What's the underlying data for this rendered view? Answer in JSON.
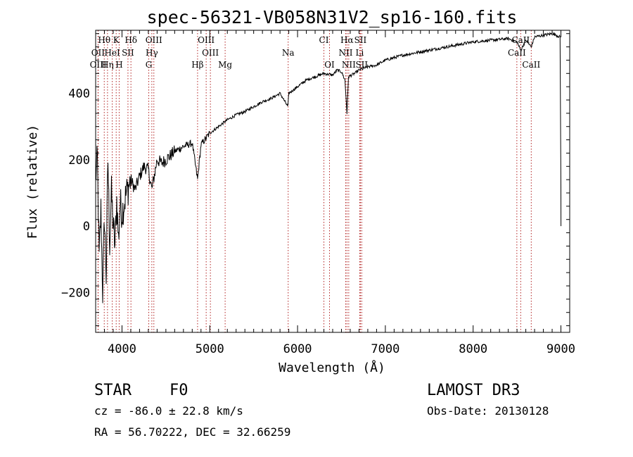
{
  "chart_data": {
    "type": "line",
    "title": "spec-56321-VB058N31V2_sp16-160.fits",
    "xlabel": "Wavelength (Å)",
    "ylabel": "Flux (relative)",
    "xlim": [
      3700,
      9100
    ],
    "ylim": [
      -320,
      590
    ],
    "xticks": [
      4000,
      5000,
      6000,
      7000,
      8000,
      9000
    ],
    "yticks": [
      -200,
      0,
      200,
      400
    ],
    "spectrum": {
      "x": [
        3700,
        3720,
        3740,
        3760,
        3780,
        3800,
        3820,
        3840,
        3860,
        3880,
        3900,
        3920,
        3940,
        3960,
        3980,
        4000,
        4050,
        4100,
        4150,
        4200,
        4250,
        4300,
        4340,
        4400,
        4450,
        4500,
        4600,
        4700,
        4800,
        4861,
        4900,
        5000,
        5100,
        5200,
        5300,
        5400,
        5500,
        5600,
        5700,
        5800,
        5890,
        5900,
        6000,
        6100,
        6200,
        6300,
        6400,
        6450,
        6500,
        6540,
        6563,
        6580,
        6650,
        6700,
        6800,
        6900,
        7000,
        7200,
        7400,
        7600,
        7800,
        8000,
        8200,
        8400,
        8500,
        8542,
        8600,
        8662,
        8700,
        8800,
        8900,
        8950,
        8990,
        9000,
        9001
      ],
      "y": [
        150,
        200,
        -100,
        50,
        -200,
        30,
        -150,
        200,
        -50,
        100,
        0,
        -60,
        80,
        -40,
        70,
        40,
        100,
        140,
        110,
        150,
        180,
        170,
        110,
        200,
        190,
        200,
        225,
        240,
        250,
        140,
        245,
        280,
        300,
        320,
        335,
        345,
        360,
        375,
        385,
        400,
        360,
        400,
        420,
        440,
        450,
        460,
        455,
        470,
        465,
        440,
        340,
        450,
        460,
        470,
        480,
        485,
        500,
        515,
        525,
        535,
        545,
        555,
        560,
        565,
        555,
        530,
        560,
        540,
        570,
        575,
        580,
        575,
        570,
        120,
        0
      ]
    },
    "lines": [
      {
        "label": "Hθ",
        "wave": 3798,
        "tier": 0
      },
      {
        "label": "K",
        "wave": 3934,
        "tier": 0
      },
      {
        "label": "Hδ",
        "wave": 4102,
        "tier": 0
      },
      {
        "label": "OIII",
        "wave": 4363,
        "tier": 0
      },
      {
        "label": "OIII",
        "wave": 4959,
        "tier": 0
      },
      {
        "label": "CI",
        "wave": 6300,
        "tier": 0
      },
      {
        "label": "Hα",
        "wave": 6563,
        "tier": 0
      },
      {
        "label": "SII",
        "wave": 6716,
        "tier": 0
      },
      {
        "label": "CaII",
        "wave": 8542,
        "tier": 0
      },
      {
        "label": "OII",
        "wave": 3727,
        "tier": 1
      },
      {
        "label": "HeI",
        "wave": 3889,
        "tier": 1
      },
      {
        "label": "SII",
        "wave": 4068,
        "tier": 1
      },
      {
        "label": "Hγ",
        "wave": 4340,
        "tier": 1
      },
      {
        "label": "OIII",
        "wave": 5007,
        "tier": 1
      },
      {
        "label": "Na",
        "wave": 5893,
        "tier": 1
      },
      {
        "label": "NII",
        "wave": 6548,
        "tier": 1
      },
      {
        "label": "Li",
        "wave": 6708,
        "tier": 1
      },
      {
        "label": "CaII",
        "wave": 8498,
        "tier": 1
      },
      {
        "label": "OIII",
        "wave": 3729,
        "tier": 2
      },
      {
        "label": "Hη",
        "wave": 3835,
        "tier": 2
      },
      {
        "label": "H",
        "wave": 3968,
        "tier": 2
      },
      {
        "label": "G",
        "wave": 4305,
        "tier": 2
      },
      {
        "label": "Hβ",
        "wave": 4861,
        "tier": 2
      },
      {
        "label": "Mg",
        "wave": 5175,
        "tier": 2
      },
      {
        "label": "OI",
        "wave": 6364,
        "tier": 2
      },
      {
        "label": "NII",
        "wave": 6583,
        "tier": 2
      },
      {
        "label": "SII",
        "wave": 6731,
        "tier": 2
      },
      {
        "label": "CaII",
        "wave": 8662,
        "tier": 2
      }
    ]
  },
  "info": {
    "class": "STAR",
    "subclass": "F0",
    "survey": "LAMOST DR3",
    "cz": "cz = -86.0 ± 22.8 km/s",
    "obsdate": "Obs-Date: 20130128",
    "radec": "RA =  56.70222, DEC =  32.66259"
  }
}
